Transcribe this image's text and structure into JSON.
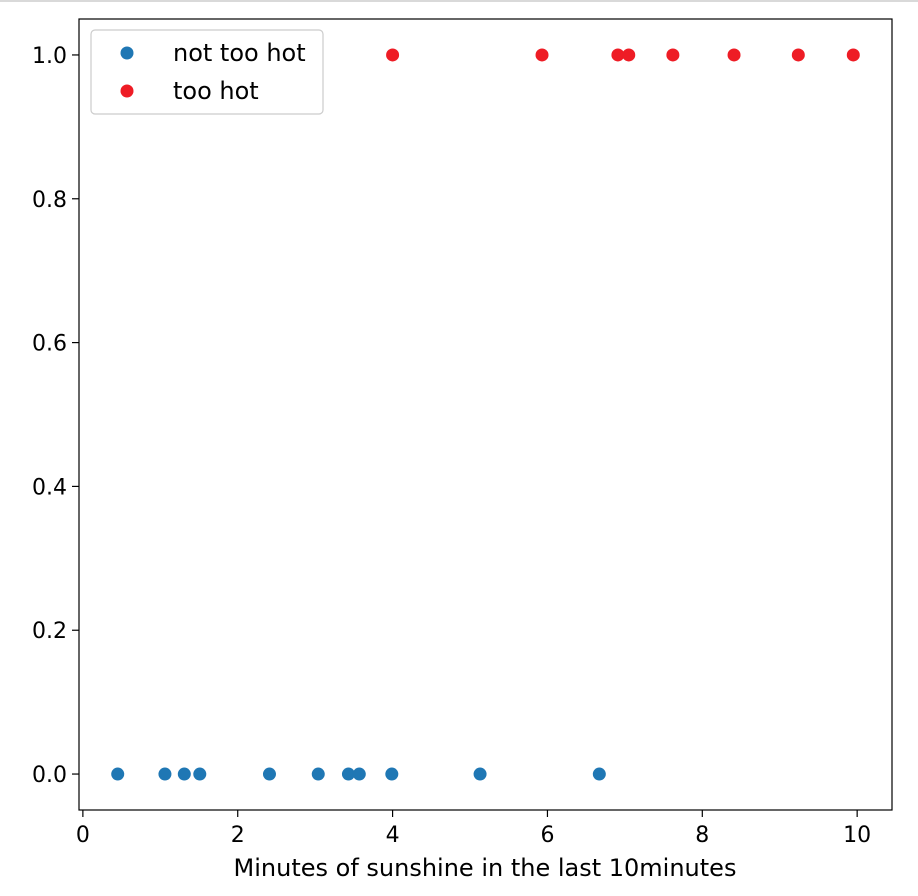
{
  "chart_data": {
    "type": "scatter",
    "title": "",
    "xlabel": "Minutes of sunshine in the last 10minutes",
    "ylabel": "",
    "xlim": [
      -0.05,
      10.45
    ],
    "ylim": [
      -0.05,
      1.05
    ],
    "xticks": [
      0,
      2,
      4,
      6,
      8,
      10
    ],
    "xtick_labels": [
      "0",
      "2",
      "4",
      "6",
      "8",
      "10"
    ],
    "yticks": [
      0.0,
      0.2,
      0.4,
      0.6,
      0.8,
      1.0
    ],
    "ytick_labels": [
      "0.0",
      "0.2",
      "0.4",
      "0.6",
      "0.8",
      "1.0"
    ],
    "grid": false,
    "legend_position": "top-left",
    "series": [
      {
        "name": "not too hot",
        "color": "#1f77b4",
        "x": [
          0.45,
          1.06,
          1.31,
          1.51,
          2.41,
          3.04,
          3.43,
          3.57,
          3.99,
          5.13,
          6.67
        ],
        "y": [
          0,
          0,
          0,
          0,
          0,
          0,
          0,
          0,
          0,
          0,
          0
        ]
      },
      {
        "name": "too hot",
        "color": "#ee1c25",
        "x": [
          4.0,
          5.93,
          6.91,
          7.05,
          7.62,
          8.41,
          9.24,
          9.95
        ],
        "y": [
          1,
          1,
          1,
          1,
          1,
          1,
          1,
          1
        ]
      }
    ]
  }
}
